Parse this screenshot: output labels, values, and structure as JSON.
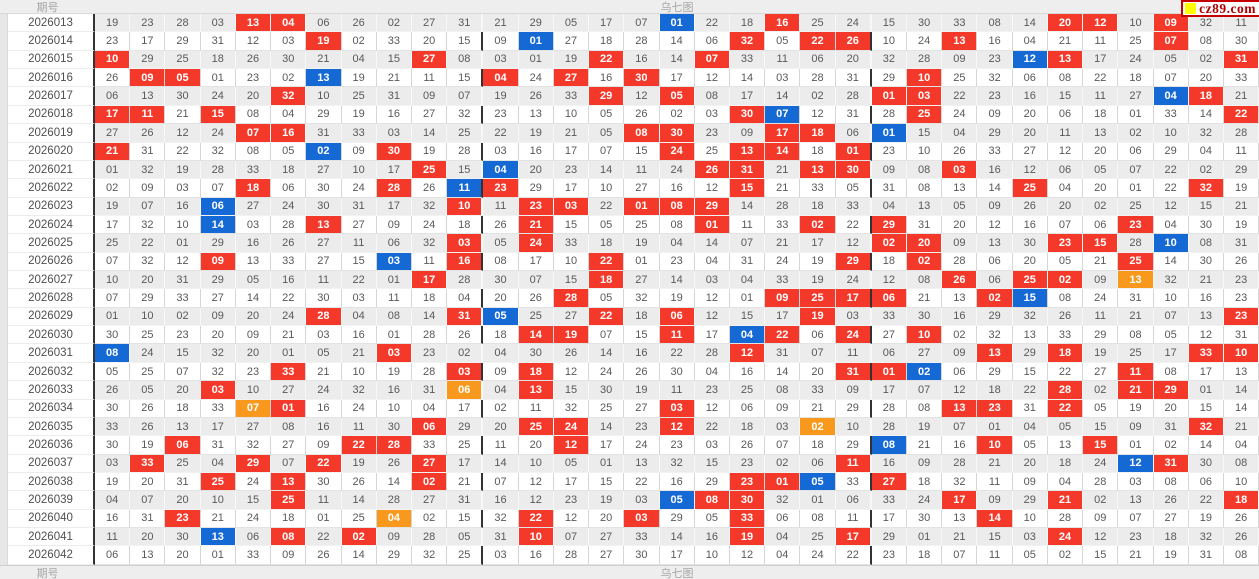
{
  "header": {
    "issue_col_label": "期号",
    "chart_title": "乌七图"
  },
  "footer": {
    "issue_col_label": "期号",
    "chart_title": "乌七图"
  },
  "logo": {
    "text": "cz89.com",
    "square_color": "#ffff00",
    "text_color": "#b00000"
  },
  "colors": {
    "red_highlight": "#f4392b",
    "blue_highlight": "#1569d4",
    "orange_highlight": "#f8991d",
    "alt_row": "#ececec",
    "separator": "#333333"
  },
  "chart_data": {
    "type": "table",
    "title": "乌七图",
    "row_header": "期号",
    "columns_per_row": 33,
    "group_separators_after_columns": [
      11,
      22
    ],
    "highlight_legend": {
      "r": "red",
      "b": "blue",
      "o": "orange"
    },
    "rows": [
      {
        "issue": "2026013",
        "n": "19 23 28 03 13 04 06 26 02 27 31 21 29 05 17 07 01 22 18 16 25 24 15 30 33 08 14 20 12 10 09 32 11",
        "m": {
          "4": "r",
          "5": "r",
          "16": "b",
          "19": "r",
          "27": "r",
          "28": "r",
          "30": "r"
        }
      },
      {
        "issue": "2026014",
        "n": "23 17 29 31 12 03 19 02 33 20 15 09 01 27 18 28 14 06 32 05 22 26 10 24 13 16 04 21 11 25 07 08 30",
        "m": {
          "6": "r",
          "12": "b",
          "18": "r",
          "20": "r",
          "21": "r",
          "24": "r",
          "30": "r"
        }
      },
      {
        "issue": "2026015",
        "n": "10 29 25 18 26 30 21 04 15 27 08 03 01 19 22 16 14 07 33 11 06 20 32 28 09 23 12 13 17 24 05 02 31",
        "m": {
          "0": "r",
          "9": "r",
          "14": "r",
          "17": "r",
          "26": "b",
          "27": "r",
          "32": "r"
        }
      },
      {
        "issue": "2026016",
        "n": "26 09 05 01 23 02 13 19 21 11 15 04 24 27 16 30 17 12 14 03 28 31 29 10 25 32 06 08 22 18 07 20 33",
        "m": {
          "1": "r",
          "2": "r",
          "6": "b",
          "11": "r",
          "13": "r",
          "15": "r",
          "23": "r"
        }
      },
      {
        "issue": "2026017",
        "n": "06 13 30 24 20 32 10 25 31 09 07 19 26 33 29 12 05 08 17 14 02 28 01 03 22 23 16 15 11 27 04 18 21",
        "m": {
          "5": "r",
          "14": "r",
          "16": "r",
          "22": "r",
          "23": "r",
          "30": "b",
          "31": "r"
        }
      },
      {
        "issue": "2026018",
        "n": "17 11 21 15 08 04 29 19 16 27 32 23 13 10 05 26 02 03 30 07 12 31 28 25 24 09 20 06 18 01 33 14 22",
        "m": {
          "0": "r",
          "1": "r",
          "3": "r",
          "18": "r",
          "19": "b",
          "23": "r",
          "32": "r"
        }
      },
      {
        "issue": "2026019",
        "n": "27 26 12 24 07 16 31 33 03 14 25 22 19 21 05 08 30 23 09 17 18 06 01 15 04 29 20 11 13 02 10 32 28",
        "m": {
          "4": "r",
          "5": "r",
          "15": "r",
          "16": "r",
          "19": "r",
          "20": "r",
          "22": "b"
        }
      },
      {
        "issue": "2026020",
        "n": "21 31 22 32 08 05 02 09 30 19 28 03 16 17 07 15 24 25 13 14 18 01 23 10 26 33 27 12 20 06 29 04 11",
        "m": {
          "0": "r",
          "6": "b",
          "8": "r",
          "16": "r",
          "18": "r",
          "19": "r",
          "21": "r"
        }
      },
      {
        "issue": "2026021",
        "n": "01 32 19 28 33 18 27 10 17 25 15 04 20 23 14 11 24 26 31 21 13 30 09 08 03 16 12 06 05 07 22 02 29",
        "m": {
          "9": "r",
          "11": "b",
          "17": "r",
          "18": "r",
          "20": "r",
          "21": "r",
          "24": "r"
        }
      },
      {
        "issue": "2026022",
        "n": "02 09 03 07 18 06 30 24 28 26 11 23 29 17 10 27 16 12 15 21 33 05 31 08 13 14 25 04 20 01 22 32 19",
        "m": {
          "4": "r",
          "8": "r",
          "10": "b",
          "11": "r",
          "18": "r",
          "26": "r",
          "31": "r"
        }
      },
      {
        "issue": "2026023",
        "n": "19 07 16 06 27 24 30 31 17 32 10 11 23 03 22 01 08 29 14 28 18 33 04 13 05 09 26 20 02 25 12 15 21",
        "m": {
          "3": "b",
          "10": "r",
          "12": "r",
          "13": "r",
          "15": "r",
          "16": "r",
          "17": "r"
        }
      },
      {
        "issue": "2026024",
        "n": "17 32 10 14 03 28 13 27 09 24 18 26 21 15 05 25 08 01 11 33 02 22 29 31 20 12 16 07 06 23 04 30 19",
        "m": {
          "3": "b",
          "6": "r",
          "12": "r",
          "17": "r",
          "20": "r",
          "22": "r",
          "29": "r"
        }
      },
      {
        "issue": "2026025",
        "n": "25 22 01 29 16 26 27 11 06 32 03 05 24 33 18 19 04 14 07 21 17 12 02 20 09 13 30 23 15 28 10 08 31",
        "m": {
          "10": "r",
          "12": "r",
          "22": "r",
          "23": "r",
          "27": "r",
          "28": "r",
          "30": "b"
        }
      },
      {
        "issue": "2026026",
        "n": "07 32 12 09 13 33 27 15 03 11 16 08 17 10 22 01 23 04 31 24 19 29 18 02 28 06 20 05 21 25 14 30 26",
        "m": {
          "3": "r",
          "8": "b",
          "10": "r",
          "14": "r",
          "21": "r",
          "23": "r",
          "29": "r"
        }
      },
      {
        "issue": "2026027",
        "n": "10 20 31 29 05 16 11 22 01 17 28 30 07 15 18 27 14 03 04 33 19 24 12 08 26 06 25 02 09 13 32 21 23",
        "m": {
          "9": "r",
          "14": "r",
          "24": "r",
          "26": "r",
          "27": "r",
          "29": "o"
        }
      },
      {
        "issue": "2026028",
        "n": "07 29 33 27 14 22 30 03 11 18 04 20 26 28 05 32 19 12 01 09 25 17 06 21 13 02 15 08 24 31 10 16 23",
        "m": {
          "13": "r",
          "19": "r",
          "20": "r",
          "21": "r",
          "22": "r",
          "25": "r",
          "26": "b"
        }
      },
      {
        "issue": "2026029",
        "n": "01 10 02 09 20 24 28 04 08 14 31 05 25 27 22 18 06 12 15 17 19 03 33 30 16 29 32 26 11 21 07 13 23",
        "m": {
          "6": "r",
          "10": "r",
          "11": "b",
          "14": "r",
          "16": "r",
          "20": "r",
          "32": "r"
        }
      },
      {
        "issue": "2026030",
        "n": "30 25 23 20 09 21 03 16 01 28 26 18 14 19 07 15 11 17 04 22 06 24 27 10 02 32 13 33 29 08 05 12 31",
        "m": {
          "12": "r",
          "13": "r",
          "16": "r",
          "18": "b",
          "19": "r",
          "21": "r",
          "23": "r"
        }
      },
      {
        "issue": "2026031",
        "n": "08 24 15 32 20 01 05 21 03 23 02 04 30 26 14 16 22 28 12 31 07 11 06 27 09 13 29 18 19 25 17 33 10",
        "m": {
          "0": "b",
          "8": "r",
          "18": "r",
          "25": "r",
          "27": "r",
          "31": "r",
          "32": "r"
        }
      },
      {
        "issue": "2026032",
        "n": "05 25 07 32 23 33 21 10 19 28 03 09 18 12 24 26 30 04 16 14 20 31 01 02 06 29 15 22 27 11 08 17 13",
        "m": {
          "5": "r",
          "10": "r",
          "12": "r",
          "21": "r",
          "22": "r",
          "23": "b",
          "29": "r"
        }
      },
      {
        "issue": "2026033",
        "n": "26 05 20 03 10 27 24 32 16 31 06 04 13 15 30 19 11 23 25 08 33 09 17 07 12 18 22 28 02 21 29 01 14",
        "m": {
          "3": "r",
          "10": "o",
          "12": "r",
          "27": "r",
          "29": "r",
          "30": "r"
        }
      },
      {
        "issue": "2026034",
        "n": "30 26 18 33 07 01 16 24 10 04 17 02 11 32 25 27 03 12 06 09 21 29 28 08 13 23 31 22 05 19 20 15 14",
        "m": {
          "4": "o",
          "5": "r",
          "16": "r",
          "24": "r",
          "25": "r",
          "27": "r"
        }
      },
      {
        "issue": "2026035",
        "n": "33 26 13 17 27 08 16 11 30 06 29 20 25 24 14 23 12 22 18 03 02 10 28 19 07 01 04 05 15 09 31 32 21",
        "m": {
          "9": "r",
          "12": "r",
          "13": "r",
          "16": "r",
          "20": "o",
          "31": "r"
        }
      },
      {
        "issue": "2026036",
        "n": "30 19 06 31 32 27 09 22 28 33 25 11 20 12 17 24 23 03 26 07 18 29 08 21 16 10 05 13 15 01 02 14 04",
        "m": {
          "2": "r",
          "7": "r",
          "8": "r",
          "13": "r",
          "22": "b",
          "25": "r",
          "28": "r"
        }
      },
      {
        "issue": "2026037",
        "n": "03 33 25 04 29 07 22 19 26 27 17 14 10 05 01 13 32 15 23 02 06 11 16 09 28 21 20 18 24 12 31 30 08",
        "m": {
          "1": "r",
          "4": "r",
          "6": "r",
          "9": "r",
          "21": "r",
          "29": "b",
          "30": "r"
        }
      },
      {
        "issue": "2026038",
        "n": "19 20 31 25 24 13 30 26 14 02 21 07 12 17 15 22 16 29 23 01 05 33 27 18 32 11 09 04 28 03 08 06 10",
        "m": {
          "3": "r",
          "5": "r",
          "9": "r",
          "18": "r",
          "19": "r",
          "20": "b",
          "22": "r"
        }
      },
      {
        "issue": "2026039",
        "n": "04 07 20 10 15 25 11 14 28 27 31 16 12 23 19 03 05 08 30 32 01 06 33 24 17 09 29 21 02 13 26 22 18",
        "m": {
          "5": "r",
          "16": "b",
          "17": "r",
          "18": "r",
          "24": "r",
          "27": "r",
          "32": "r"
        }
      },
      {
        "issue": "2026040",
        "n": "16 31 23 21 24 18 01 25 04 02 15 32 22 12 20 03 29 05 33 06 08 11 17 30 13 14 10 28 09 07 27 19 26",
        "m": {
          "2": "r",
          "8": "o",
          "12": "r",
          "15": "r",
          "18": "r",
          "25": "r"
        }
      },
      {
        "issue": "2026041",
        "n": "11 20 30 13 06 08 22 02 09 28 05 31 10 07 27 33 14 16 19 04 25 17 29 01 21 15 03 24 12 23 18 32 26",
        "m": {
          "3": "b",
          "5": "r",
          "7": "r",
          "12": "r",
          "18": "r",
          "21": "r",
          "27": "r"
        }
      },
      {
        "issue": "2026042",
        "n": "06 13 20 01 33 09 26 14 29 32 25 03 16 28 27 30 17 10 12 04 24 22 23 18 07 11 05 02 15 21 19 31 08",
        "m": {}
      }
    ]
  }
}
